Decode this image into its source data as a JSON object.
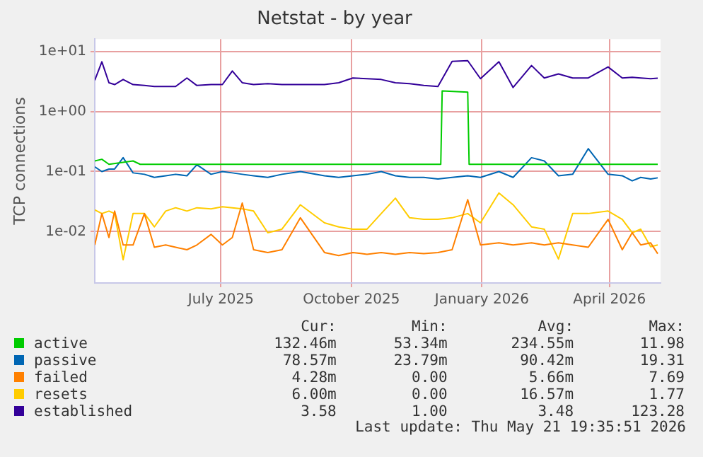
{
  "chart_data": {
    "type": "line",
    "title": "Netstat - by year",
    "ylabel": "TCP connections",
    "x": [
      "2025-04-03",
      "2025-04-08",
      "2025-04-13",
      "2025-04-17",
      "2025-04-23",
      "2025-04-30",
      "2025-05-08",
      "2025-05-15",
      "2025-05-23",
      "2025-05-30",
      "2025-06-07",
      "2025-06-14",
      "2025-06-24",
      "2025-07-02",
      "2025-07-09",
      "2025-07-16",
      "2025-07-24",
      "2025-08-03",
      "2025-08-13",
      "2025-08-26",
      "2025-09-12",
      "2025-09-22",
      "2025-10-02",
      "2025-10-12",
      "2025-10-22",
      "2025-11-01",
      "2025-11-11",
      "2025-11-21",
      "2025-12-01",
      "2025-12-11",
      "2025-12-22",
      "2025-12-31",
      "2026-01-13",
      "2026-01-23",
      "2026-02-05",
      "2026-02-14",
      "2026-02-24",
      "2026-03-06",
      "2026-03-17",
      "2026-03-31",
      "2026-04-10",
      "2026-04-17",
      "2026-04-23",
      "2026-04-30",
      "2026-05-05"
    ],
    "series": [
      {
        "name": "active",
        "color": "#00cc00",
        "x": [
          "2025-04-03",
          "2025-04-08",
          "2025-04-13",
          "2025-04-30",
          "2025-05-05",
          "2025-12-03",
          "2025-12-04",
          "2025-12-22",
          "2025-12-23",
          "2026-05-05"
        ],
        "values": [
          0.15,
          0.16,
          0.132,
          0.15,
          0.132,
          0.132,
          2.2,
          2.1,
          0.132,
          0.132
        ]
      },
      {
        "name": "passive",
        "color": "#0066b3",
        "values": [
          0.12,
          0.1,
          0.11,
          0.11,
          0.17,
          0.095,
          0.09,
          0.08,
          0.085,
          0.09,
          0.085,
          0.13,
          0.09,
          0.1,
          0.095,
          0.09,
          0.085,
          0.08,
          0.09,
          0.1,
          0.085,
          0.08,
          0.085,
          0.09,
          0.1,
          0.085,
          0.08,
          0.08,
          0.075,
          0.08,
          0.085,
          0.08,
          0.1,
          0.08,
          0.17,
          0.15,
          0.085,
          0.09,
          0.24,
          0.09,
          0.085,
          0.07,
          0.08,
          0.075,
          0.0786
        ]
      },
      {
        "name": "failed",
        "color": "#ff8000",
        "values": [
          0.006,
          0.02,
          0.008,
          0.022,
          0.006,
          0.006,
          0.02,
          0.0055,
          0.006,
          0.0055,
          0.005,
          0.006,
          0.009,
          0.006,
          0.008,
          0.03,
          0.005,
          0.0045,
          0.005,
          0.017,
          0.0045,
          0.004,
          0.0045,
          0.0042,
          0.0045,
          0.0042,
          0.0045,
          0.0043,
          0.0045,
          0.005,
          0.034,
          0.006,
          0.0065,
          0.006,
          0.0065,
          0.006,
          0.0065,
          0.006,
          0.0055,
          0.016,
          0.005,
          0.0096,
          0.006,
          0.0065,
          0.0043
        ]
      },
      {
        "name": "resets",
        "color": "#ffcc00",
        "values": [
          0.023,
          0.02,
          0.022,
          0.02,
          0.0034,
          0.02,
          0.02,
          0.012,
          0.022,
          0.025,
          0.022,
          0.025,
          0.024,
          0.026,
          0.025,
          0.024,
          0.022,
          0.0096,
          0.011,
          0.028,
          0.014,
          0.012,
          0.011,
          0.011,
          0.02,
          0.036,
          0.017,
          0.016,
          0.016,
          0.017,
          0.02,
          0.014,
          0.044,
          0.028,
          0.012,
          0.011,
          0.0035,
          0.02,
          0.02,
          0.022,
          0.016,
          0.0096,
          0.011,
          0.0056,
          0.006
        ]
      },
      {
        "name": "established",
        "color": "#330099",
        "values": [
          3.3,
          6.7,
          3.0,
          2.8,
          3.4,
          2.8,
          2.7,
          2.6,
          2.6,
          2.6,
          3.6,
          2.7,
          2.8,
          2.8,
          4.7,
          3.0,
          2.8,
          2.9,
          2.8,
          2.8,
          2.8,
          3.0,
          3.6,
          3.5,
          3.4,
          3.0,
          2.9,
          2.7,
          2.6,
          6.8,
          7.0,
          3.5,
          6.7,
          2.5,
          5.8,
          3.6,
          4.2,
          3.6,
          3.6,
          5.5,
          3.6,
          3.7,
          3.6,
          3.5,
          3.58
        ]
      }
    ],
    "xlim": [
      "2025-04-03",
      "2026-05-07"
    ],
    "xticks": [
      {
        "value": "2025-07-01",
        "label": "July 2025"
      },
      {
        "value": "2025-10-01",
        "label": "October 2025"
      },
      {
        "value": "2026-01-01",
        "label": "January 2026"
      },
      {
        "value": "2026-04-01",
        "label": "April 2026"
      }
    ],
    "log": "y",
    "ylim": [
      0.0014,
      16
    ],
    "yticks": [
      {
        "value": 0.01,
        "label": "1e-02"
      },
      {
        "value": 0.1,
        "label": "1e-01"
      },
      {
        "value": 1,
        "label": "1e+00"
      },
      {
        "value": 10,
        "label": "1e+01"
      }
    ],
    "grid": true,
    "legend": "bottom",
    "marker": "none",
    "line_style": "solid",
    "annotations": [
      "Cur:",
      "Min:",
      "Avg:",
      "Max:",
      "132.46m",
      "53.34m",
      "234.55m",
      "11.98",
      "78.57m",
      "23.79m",
      "90.42m",
      "19.31",
      "4.28m",
      "0.00",
      "5.66m",
      "7.69",
      "6.00m",
      "0.00",
      "16.57m",
      "1.77",
      "3.58",
      "1.00",
      "3.48",
      "123.28",
      "Last update: Thu May 21 19:35:51 2026"
    ]
  }
}
